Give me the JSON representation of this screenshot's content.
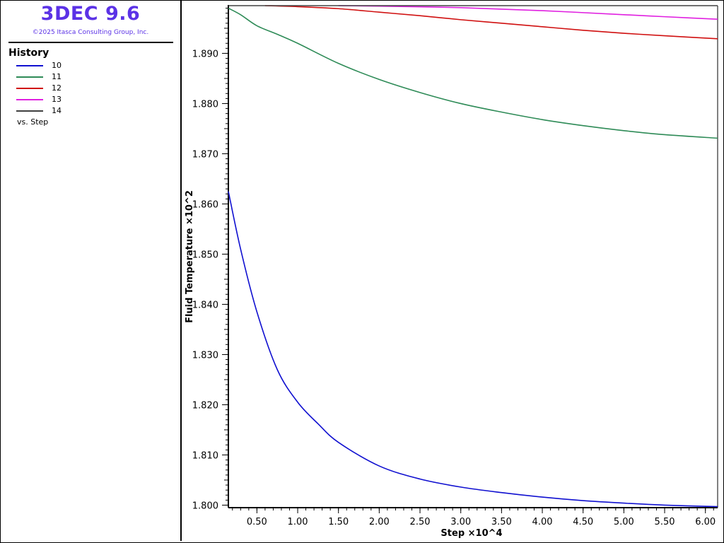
{
  "app": {
    "title": "3DEC 9.6",
    "copyright": "©2025 Itasca Consulting Group, Inc."
  },
  "legend": {
    "heading": "History",
    "items": [
      {
        "label": "10",
        "color": "#1010d0"
      },
      {
        "label": "11",
        "color": "#2e8b57"
      },
      {
        "label": "12",
        "color": "#d01010"
      },
      {
        "label": "13",
        "color": "#e020e0"
      },
      {
        "label": "14",
        "color": "#404040"
      }
    ],
    "vs_label": "vs. Step"
  },
  "chart_data": {
    "type": "line",
    "xlabel": "Step ×10^4",
    "ylabel": "Fluid Temperature ×10^2",
    "xlim": [
      0.15,
      6.15
    ],
    "ylim": [
      1.7995,
      1.8995
    ],
    "x_ticks": [
      0.5,
      1.0,
      1.5,
      2.0,
      2.5,
      3.0,
      3.5,
      4.0,
      4.5,
      5.0,
      5.5,
      6.0
    ],
    "x_tick_labels": [
      "0.50",
      "1.00",
      "1.50",
      "2.00",
      "2.50",
      "3.00",
      "3.50",
      "4.00",
      "4.50",
      "5.00",
      "5.50",
      "6.00"
    ],
    "y_ticks": [
      1.8,
      1.81,
      1.82,
      1.83,
      1.84,
      1.85,
      1.86,
      1.87,
      1.88,
      1.89
    ],
    "y_tick_labels": [
      "1.800",
      "1.810",
      "1.820",
      "1.830",
      "1.840",
      "1.850",
      "1.860",
      "1.870",
      "1.880",
      "1.890"
    ],
    "grid": false,
    "series": [
      {
        "name": "10",
        "color": "#1010d0",
        "x": [
          0.15,
          0.3,
          0.5,
          0.75,
          1.0,
          1.25,
          1.5,
          2.0,
          2.5,
          3.0,
          3.5,
          4.0,
          4.5,
          5.0,
          5.5,
          6.15
        ],
        "y": [
          1.8625,
          1.851,
          1.8385,
          1.827,
          1.8205,
          1.8162,
          1.8125,
          1.8078,
          1.8052,
          1.8036,
          1.8025,
          1.8016,
          1.8009,
          1.8004,
          1.8,
          1.7997
        ]
      },
      {
        "name": "11",
        "color": "#2e8b57",
        "x": [
          0.15,
          0.3,
          0.5,
          0.75,
          1.0,
          1.5,
          2.0,
          2.5,
          3.0,
          3.5,
          4.0,
          4.5,
          5.0,
          5.5,
          6.15
        ],
        "y": [
          1.899,
          1.8977,
          1.8955,
          1.8938,
          1.892,
          1.888,
          1.8848,
          1.8822,
          1.88,
          1.8783,
          1.8768,
          1.8756,
          1.8746,
          1.8738,
          1.8731
        ]
      },
      {
        "name": "12",
        "color": "#d01010",
        "x": [
          0.6,
          1.0,
          1.5,
          2.0,
          2.5,
          3.0,
          3.5,
          4.0,
          4.5,
          5.0,
          5.5,
          6.15
        ],
        "y": [
          1.8995,
          1.8993,
          1.8989,
          1.8982,
          1.8975,
          1.8967,
          1.896,
          1.8953,
          1.8946,
          1.894,
          1.8935,
          1.8929
        ]
      },
      {
        "name": "13",
        "color": "#e020e0",
        "x": [
          1.5,
          2.0,
          3.0,
          4.0,
          5.0,
          5.5,
          6.15
        ],
        "y": [
          1.8995,
          1.8994,
          1.8991,
          1.8985,
          1.8977,
          1.8973,
          1.8968
        ]
      },
      {
        "name": "14",
        "color": "#404040",
        "x": [
          0.15,
          6.15
        ],
        "y": [
          1.8995,
          1.8995
        ]
      }
    ]
  }
}
